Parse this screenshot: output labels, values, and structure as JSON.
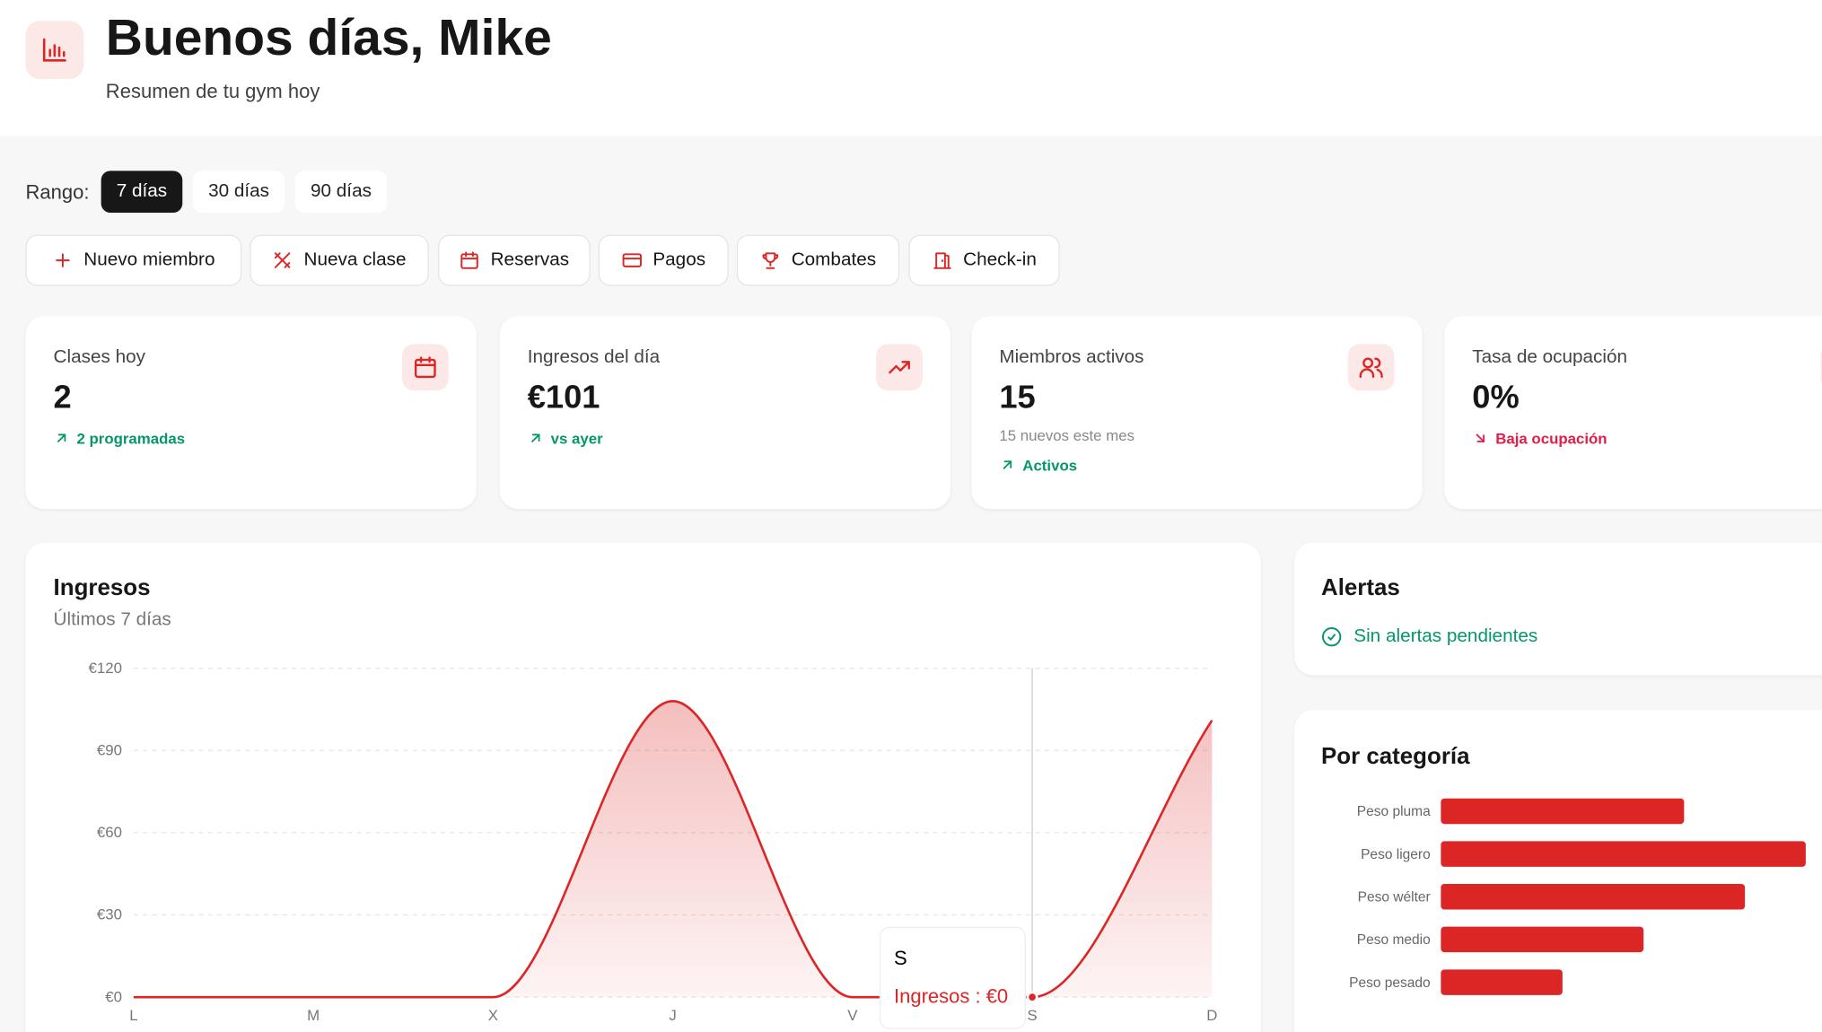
{
  "header": {
    "title": "Buenos días, Mike",
    "subtitle": "Resumen de tu gym hoy"
  },
  "range": {
    "label": "Rango:",
    "options": [
      "7 días",
      "30 días",
      "90 días"
    ],
    "selected": 0
  },
  "actions": [
    "Nuevo miembro",
    "Nueva clase",
    "Reservas",
    "Pagos",
    "Combates",
    "Check-in"
  ],
  "stats": [
    {
      "label": "Clases hoy",
      "value": "2",
      "note": "2 programadas",
      "trend": "up"
    },
    {
      "label": "Ingresos del día",
      "value": "€101",
      "note": "vs ayer",
      "trend": "up"
    },
    {
      "label": "Miembros activos",
      "value": "15",
      "detail": "15 nuevos este mes",
      "note": "Activos",
      "trend": "up"
    },
    {
      "label": "Tasa de ocupación",
      "value": "0%",
      "note": "Baja ocupación",
      "trend": "down"
    }
  ],
  "alerts": {
    "title": "Alertas",
    "message": "Sin alertas pendientes"
  },
  "chart_data": [
    {
      "type": "line",
      "title": "Ingresos",
      "subtitle": "Últimos 7 días",
      "categories": [
        "L",
        "M",
        "X",
        "J",
        "V",
        "S",
        "D"
      ],
      "series": [
        {
          "name": "Ingresos",
          "color": "#dc2626",
          "values": [
            0,
            0,
            0,
            108,
            0,
            0,
            101
          ]
        }
      ],
      "ylim": [
        0,
        120
      ],
      "yticks": [
        {
          "value": 0,
          "label": "€0"
        },
        {
          "value": 30,
          "label": "€30"
        },
        {
          "value": 60,
          "label": "€60"
        },
        {
          "value": 90,
          "label": "€90"
        },
        {
          "value": 120,
          "label": "€120"
        }
      ],
      "grid": true,
      "tooltip": {
        "category": "S",
        "label": "Ingresos : €0"
      }
    },
    {
      "type": "bar",
      "orientation": "horizontal",
      "title": "Por categoría",
      "categories": [
        "Peso pluma",
        "Peso ligero",
        "Peso wélter",
        "Peso medio",
        "Peso pesado"
      ],
      "values": [
        12,
        18,
        15,
        10,
        6
      ],
      "color": "#dc2626"
    }
  ]
}
